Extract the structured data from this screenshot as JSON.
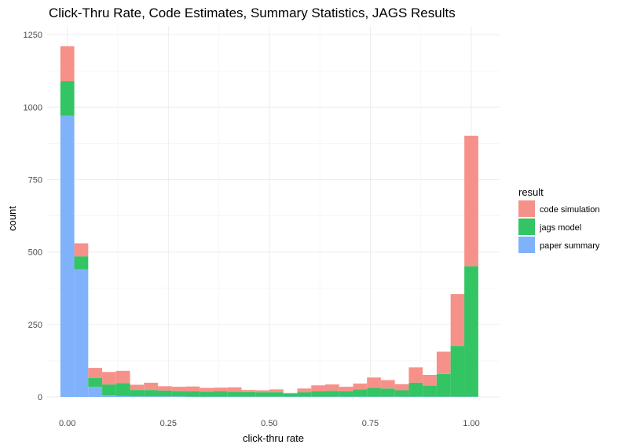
{
  "chart_data": {
    "type": "bar",
    "stacked": true,
    "title": "Click-Thru Rate, Code Estimates, Summary Statistics, JAGS Results",
    "xlabel": "click-thru rate",
    "ylabel": "count",
    "xlim": [
      -0.05,
      1.07
    ],
    "ylim": [
      0,
      1280
    ],
    "x_ticks": [
      0.0,
      0.25,
      0.5,
      0.75,
      1.0
    ],
    "x_tick_labels": [
      "0.00",
      "0.25",
      "0.50",
      "0.75",
      "1.00"
    ],
    "y_ticks": [
      0,
      250,
      500,
      750,
      1000,
      1250
    ],
    "y_tick_labels": [
      "0",
      "250",
      "500",
      "750",
      "1000",
      "1250"
    ],
    "grid": true,
    "legend_title": "result",
    "legend_position": "right",
    "bin_width": 0.0345,
    "bin_centers": [
      0.0,
      0.0345,
      0.069,
      0.1035,
      0.138,
      0.1725,
      0.207,
      0.2415,
      0.276,
      0.3105,
      0.345,
      0.3795,
      0.414,
      0.4485,
      0.483,
      0.5175,
      0.552,
      0.5865,
      0.621,
      0.6555,
      0.69,
      0.7245,
      0.759,
      0.7935,
      0.828,
      0.8625,
      0.897,
      0.9315,
      0.966,
      1.0
    ],
    "series": [
      {
        "name": "paper summary",
        "color": "#7fb2fb",
        "values": [
          970,
          440,
          35,
          5,
          3,
          2,
          2,
          2,
          2,
          1,
          1,
          1,
          1,
          1,
          1,
          1,
          1,
          1,
          1,
          1,
          1,
          1,
          1,
          1,
          1,
          1,
          1,
          1,
          1,
          1
        ]
      },
      {
        "name": "jags model",
        "color": "#33c563",
        "values": [
          120,
          45,
          30,
          38,
          45,
          22,
          22,
          20,
          18,
          18,
          17,
          18,
          17,
          16,
          15,
          15,
          10,
          15,
          18,
          20,
          18,
          25,
          30,
          28,
          22,
          48,
          38,
          78,
          175,
          450
        ]
      },
      {
        "name": "code simulation",
        "color": "#f6918a",
        "values": [
          120,
          45,
          35,
          43,
          42,
          18,
          25,
          15,
          15,
          17,
          13,
          13,
          15,
          7,
          7,
          10,
          3,
          13,
          21,
          22,
          16,
          20,
          36,
          29,
          21,
          53,
          37,
          77,
          179,
          450
        ]
      }
    ]
  }
}
